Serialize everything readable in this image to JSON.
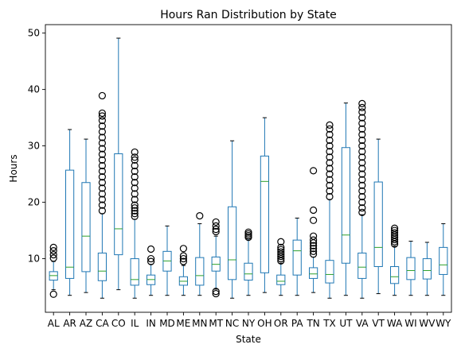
{
  "chart_data": {
    "type": "box",
    "title": "Hours Ran Distribution by State",
    "xlabel": "State",
    "ylabel": "Hours",
    "ylim": [
      0.5,
      51.5
    ],
    "yticks": [
      10,
      20,
      30,
      40,
      50
    ],
    "grid": false,
    "box_color": "#1f77b4",
    "median_color": "#2ca02c",
    "categories": [
      "AL",
      "AR",
      "AZ",
      "CA",
      "CO",
      "IL",
      "IN",
      "MD",
      "ME",
      "MN",
      "MT",
      "NC",
      "NY",
      "OH",
      "OR",
      "PA",
      "TN",
      "TX",
      "UT",
      "VA",
      "VT",
      "WA",
      "WI",
      "WV",
      "WY"
    ],
    "boxes": [
      {
        "state": "AL",
        "whislo": 4.5,
        "q1": 6.2,
        "med": 7.0,
        "q3": 7.7,
        "whishi": 9.5,
        "fliers": [
          3.7,
          10.1,
          10.7,
          11.4,
          12.0
        ]
      },
      {
        "state": "AR",
        "whislo": 3.5,
        "q1": 6.5,
        "med": 8.5,
        "q3": 25.7,
        "whishi": 32.9,
        "fliers": []
      },
      {
        "state": "AZ",
        "whislo": 4.0,
        "q1": 7.7,
        "med": 14.0,
        "q3": 23.5,
        "whishi": 31.2,
        "fliers": []
      },
      {
        "state": "CA",
        "whislo": 3.0,
        "q1": 6.1,
        "med": 7.8,
        "q3": 11.0,
        "whishi": 18.0,
        "fliers": [
          18.5,
          19.5,
          20.5,
          21.5,
          22.5,
          23.5,
          24.5,
          25.5,
          26.5,
          27.5,
          28.5,
          29.5,
          30.5,
          31.5,
          32.5,
          33.5,
          34.5,
          35.3,
          35.8,
          38.9
        ]
      },
      {
        "state": "CO",
        "whislo": 4.5,
        "q1": 10.7,
        "med": 15.3,
        "q3": 28.6,
        "whishi": 49.1,
        "fliers": []
      },
      {
        "state": "IL",
        "whislo": 3.0,
        "q1": 5.3,
        "med": 6.3,
        "q3": 10.0,
        "whishi": 17.0,
        "fliers": [
          17.5,
          18.0,
          18.5,
          19.0,
          19.5,
          20.5,
          21.5,
          22.5,
          23.5,
          24.5,
          25.5,
          26.5,
          27.5,
          28.0,
          28.9
        ]
      },
      {
        "state": "IN",
        "whislo": 3.5,
        "q1": 5.4,
        "med": 6.3,
        "q3": 7.1,
        "whishi": 9.0,
        "fliers": [
          9.5,
          10.0,
          11.7
        ]
      },
      {
        "state": "MD",
        "whislo": 3.5,
        "q1": 7.8,
        "med": 9.6,
        "q3": 11.3,
        "whishi": 15.8,
        "fliers": []
      },
      {
        "state": "ME",
        "whislo": 3.5,
        "q1": 5.3,
        "med": 6.0,
        "q3": 6.8,
        "whishi": 8.8,
        "fliers": [
          9.5,
          10.0,
          10.5,
          11.8
        ]
      },
      {
        "state": "MN",
        "whislo": 3.5,
        "q1": 5.3,
        "med": 7.0,
        "q3": 10.2,
        "whishi": 16.2,
        "fliers": [
          17.6
        ]
      },
      {
        "state": "MT",
        "whislo": 4.6,
        "q1": 7.8,
        "med": 9.0,
        "q3": 10.3,
        "whishi": 14.0,
        "fliers": [
          3.8,
          4.2,
          14.8,
          15.2,
          15.8,
          16.5
        ]
      },
      {
        "state": "NC",
        "whislo": 3.0,
        "q1": 6.3,
        "med": 9.8,
        "q3": 19.2,
        "whishi": 30.9,
        "fliers": []
      },
      {
        "state": "NY",
        "whislo": 3.5,
        "q1": 6.2,
        "med": 7.3,
        "q3": 9.2,
        "whishi": 13.5,
        "fliers": [
          13.8,
          14.1,
          14.4,
          14.7
        ]
      },
      {
        "state": "OH",
        "whislo": 4.0,
        "q1": 7.5,
        "med": 23.7,
        "q3": 28.2,
        "whishi": 35.0,
        "fliers": []
      },
      {
        "state": "OR",
        "whislo": 3.5,
        "q1": 5.4,
        "med": 6.0,
        "q3": 7.1,
        "whishi": 9.2,
        "fliers": [
          9.6,
          10.0,
          10.4,
          10.8,
          11.2,
          11.6,
          12.0,
          13.0
        ]
      },
      {
        "state": "PA",
        "whislo": 3.5,
        "q1": 7.1,
        "med": 11.4,
        "q3": 13.3,
        "whishi": 17.2,
        "fliers": []
      },
      {
        "state": "TN",
        "whislo": 4.0,
        "q1": 6.5,
        "med": 7.3,
        "q3": 8.4,
        "whishi": 10.3,
        "fliers": [
          10.8,
          11.3,
          11.8,
          12.3,
          12.8,
          13.3,
          14.0,
          16.8,
          18.6,
          25.6
        ]
      },
      {
        "state": "TX",
        "whislo": 3.0,
        "q1": 5.7,
        "med": 7.2,
        "q3": 9.7,
        "whishi": 20.5,
        "fliers": [
          21.0,
          22.0,
          23.0,
          24.0,
          25.0,
          26.0,
          27.0,
          28.0,
          29.0,
          30.0,
          31.0,
          32.0,
          33.0,
          33.7
        ]
      },
      {
        "state": "UT",
        "whislo": 3.5,
        "q1": 9.2,
        "med": 14.2,
        "q3": 29.7,
        "whishi": 37.6,
        "fliers": []
      },
      {
        "state": "VA",
        "whislo": 3.0,
        "q1": 6.5,
        "med": 8.5,
        "q3": 11.0,
        "whishi": 17.8,
        "fliers": [
          18.2,
          19.0,
          20.0,
          21.0,
          22.0,
          23.0,
          24.0,
          25.0,
          26.0,
          27.0,
          28.0,
          29.0,
          30.0,
          31.0,
          32.0,
          33.0,
          34.0,
          35.0,
          36.0,
          36.8,
          37.5
        ]
      },
      {
        "state": "VT",
        "whislo": 3.8,
        "q1": 8.6,
        "med": 12.0,
        "q3": 23.6,
        "whishi": 31.2,
        "fliers": []
      },
      {
        "state": "WA",
        "whislo": 3.5,
        "q1": 5.6,
        "med": 6.8,
        "q3": 8.6,
        "whishi": 12.2,
        "fliers": [
          12.6,
          13.0,
          13.4,
          13.8,
          14.2,
          14.6,
          15.0,
          15.4
        ]
      },
      {
        "state": "WI",
        "whislo": 3.5,
        "q1": 6.3,
        "med": 7.9,
        "q3": 10.2,
        "whishi": 13.1,
        "fliers": []
      },
      {
        "state": "WV",
        "whislo": 3.5,
        "q1": 6.4,
        "med": 7.9,
        "q3": 10.0,
        "whishi": 12.9,
        "fliers": []
      },
      {
        "state": "WY",
        "whislo": 3.5,
        "q1": 7.2,
        "med": 8.9,
        "q3": 12.0,
        "whishi": 16.2,
        "fliers": []
      }
    ]
  }
}
